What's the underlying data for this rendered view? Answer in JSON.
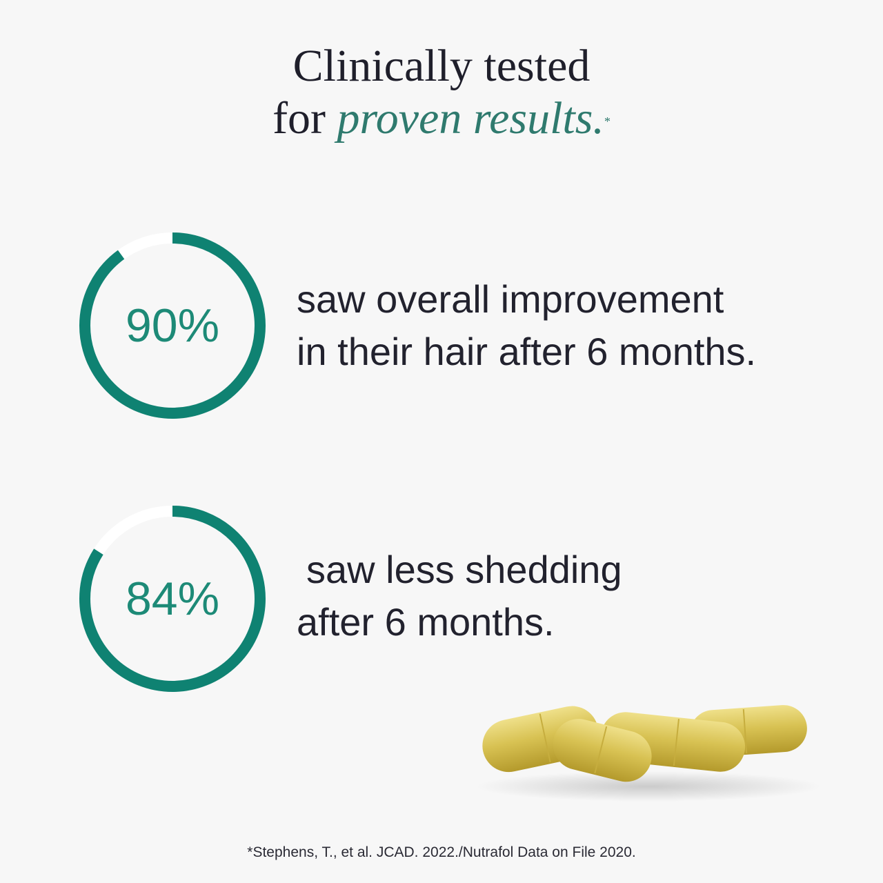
{
  "headline": {
    "line1": "Clinically tested",
    "line2_prefix": "for ",
    "line2_accent": "proven results.",
    "marker": "*"
  },
  "stats": [
    {
      "percent_label": "90%",
      "percent_value": 90,
      "line1": "saw overall improvement",
      "line2": "in their hair after 6 months."
    },
    {
      "percent_label": "84%",
      "percent_value": 84,
      "line1": "saw less shedding",
      "line2": "after 6 months."
    }
  ],
  "footnote": "*Stephens, T., et al. JCAD. 2022./Nutrafol Data on File 2020.",
  "colors": {
    "ring": "#0f8272",
    "ring_track": "#ffffff",
    "accent_text": "#2f7a6e",
    "percent_text": "#1d8a77",
    "capsule": "#d7c04e"
  },
  "icons": {
    "capsules": "capsule-pills-image"
  }
}
